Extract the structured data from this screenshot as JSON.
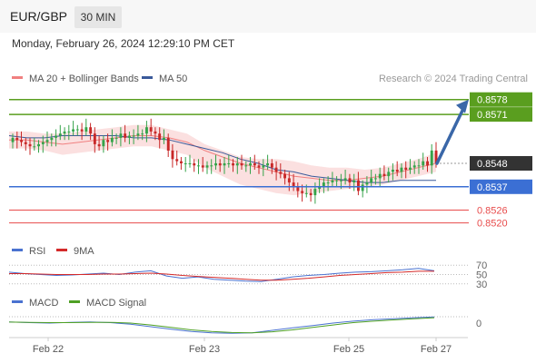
{
  "header": {
    "symbol": "EUR/GBP",
    "timeframe": "30 MIN"
  },
  "datetime": "Monday, February 26, 2024 12:29:10 PM CET",
  "legend": {
    "ma20_label": "MA 20 + Bollinger Bands",
    "ma50_label": "MA 50",
    "credit": "Research © 2024 Trading Central"
  },
  "rsi_legend": {
    "rsi": "RSI",
    "ma9": "9MA"
  },
  "macd_legend": {
    "macd": "MACD",
    "signal": "MACD Signal"
  },
  "colors": {
    "resistance": "#5a9e1f",
    "support": "#3b6fd4",
    "red_level": "#e84c4c",
    "current": "#333333",
    "arrow": "#3a67a8",
    "ma20": "#f08080",
    "ma50": "#3a5a9a",
    "band": "#fbe0e0",
    "up_candle": "#35a34a",
    "down_candle": "#c82828"
  },
  "chart_data": [
    {
      "type": "candlestick",
      "title": "EUR/GBP",
      "x_ticks": [
        "Feb 22",
        "Feb 23",
        "Feb 25",
        "Feb 27"
      ],
      "y_range": [
        0.8513,
        0.8583
      ],
      "closes": [
        0.856,
        0.8559,
        0.8558,
        0.8557,
        0.8556,
        0.8556,
        0.8557,
        0.8558,
        0.8559,
        0.856,
        0.8561,
        0.8562,
        0.8563,
        0.8563,
        0.8564,
        0.8564,
        0.8563,
        0.8565,
        0.8562,
        0.8557,
        0.8556,
        0.8559,
        0.8558,
        0.856,
        0.856,
        0.8562,
        0.856,
        0.8561,
        0.8561,
        0.8562,
        0.8562,
        0.8565,
        0.8563,
        0.8562,
        0.8559,
        0.856,
        0.8554,
        0.855,
        0.8549,
        0.8548,
        0.8548,
        0.8548,
        0.8547,
        0.8547,
        0.8546,
        0.8547,
        0.8547,
        0.8548,
        0.8547,
        0.8548,
        0.8548,
        0.8547,
        0.8548,
        0.8547,
        0.8547,
        0.8548,
        0.8547,
        0.8546,
        0.8547,
        0.8548,
        0.8546,
        0.8544,
        0.8543,
        0.8541,
        0.8539,
        0.8537,
        0.8535,
        0.8534,
        0.8534,
        0.8533,
        0.8536,
        0.8537,
        0.8539,
        0.8539,
        0.854,
        0.854,
        0.854,
        0.8541,
        0.8539,
        0.854,
        0.8535,
        0.8538,
        0.8539,
        0.8541,
        0.8541,
        0.8543,
        0.8542,
        0.8544,
        0.8545,
        0.8544,
        0.8546,
        0.8545,
        0.8546,
        0.8547,
        0.8547,
        0.8549,
        0.8547,
        0.8554,
        0.8548
      ],
      "overlays": [
        {
          "name": "MA 20 + Bollinger Bands",
          "ma": [
            0.8559,
            0.8559,
            0.8558,
            0.8557,
            0.8558,
            0.8559,
            0.856,
            0.8561,
            0.8561,
            0.856,
            0.8558,
            0.8554,
            0.8551,
            0.8548,
            0.8546,
            0.8544,
            0.8542,
            0.8541,
            0.854,
            0.854,
            0.8541,
            0.8542,
            0.8544,
            0.8546,
            0.8548
          ],
          "upper": [
            0.8563,
            0.8563,
            0.8562,
            0.8562,
            0.8563,
            0.8564,
            0.8565,
            0.8566,
            0.8566,
            0.8564,
            0.8562,
            0.8557,
            0.8554,
            0.8551,
            0.855,
            0.855,
            0.8549,
            0.8547,
            0.8546,
            0.8546,
            0.8545,
            0.8546,
            0.8548,
            0.855,
            0.8553
          ],
          "lower": [
            0.8555,
            0.8555,
            0.8554,
            0.8552,
            0.8553,
            0.8554,
            0.8555,
            0.8556,
            0.8556,
            0.8554,
            0.8552,
            0.8546,
            0.8542,
            0.8538,
            0.8536,
            0.8534,
            0.8533,
            0.8534,
            0.8535,
            0.8536,
            0.8537,
            0.8538,
            0.854,
            0.8542,
            0.8544
          ]
        },
        {
          "name": "MA 50",
          "values": [
            0.8561,
            0.856,
            0.856,
            0.8561,
            0.8561,
            0.8561,
            0.8561,
            0.856,
            0.856,
            0.8559,
            0.8557,
            0.8555,
            0.8553,
            0.855,
            0.8548,
            0.8545,
            0.8544,
            0.8542,
            0.8541,
            0.854,
            0.8539,
            0.8539,
            0.854,
            0.854,
            0.854
          ]
        }
      ],
      "levels": [
        {
          "label": "0.8578",
          "value": 0.8578,
          "kind": "resistance"
        },
        {
          "label": "0.8571",
          "value": 0.8571,
          "kind": "resistance"
        },
        {
          "label": "0.8548",
          "value": 0.8548,
          "kind": "current"
        },
        {
          "label": "0.8537",
          "value": 0.8537,
          "kind": "support"
        },
        {
          "label": "0.8526",
          "value": 0.8526,
          "kind": "red"
        },
        {
          "label": "0.8520",
          "value": 0.852,
          "kind": "red"
        }
      ],
      "projection": {
        "from": 0.8548,
        "to": 0.8578
      }
    },
    {
      "type": "line",
      "title": "RSI",
      "y_ticks": [
        "70",
        "50",
        "30"
      ],
      "y_range": [
        20,
        80
      ],
      "series": [
        {
          "name": "RSI",
          "values": [
            55,
            52,
            50,
            48,
            49,
            51,
            53,
            50,
            55,
            58,
            47,
            42,
            45,
            40,
            38,
            36,
            35,
            40,
            45,
            48,
            50,
            53,
            55,
            56,
            58,
            60,
            63,
            58
          ]
        },
        {
          "name": "9MA",
          "values": [
            52,
            52,
            51,
            50,
            50,
            50,
            51,
            51,
            52,
            53,
            51,
            48,
            46,
            44,
            42,
            40,
            38,
            38,
            40,
            42,
            45,
            48,
            50,
            52,
            54,
            55,
            57,
            57
          ]
        }
      ]
    },
    {
      "type": "line",
      "title": "MACD",
      "y_ticks": [
        "0"
      ],
      "y_range": [
        -0.0006,
        0.0006
      ],
      "series": [
        {
          "name": "MACD",
          "values": [
            5e-05,
            2e-05,
            0.0,
            3e-05,
            5e-05,
            2e-05,
            -5e-05,
            -0.00015,
            -0.00025,
            -0.00035,
            -0.0004,
            -0.00042,
            -0.0004,
            -0.0003,
            -0.0002,
            -0.0001,
            0.0,
            8e-05,
            0.00014,
            0.00018,
            0.00022,
            0.00025
          ]
        },
        {
          "name": "MACD Signal",
          "values": [
            4e-05,
            3e-05,
            2e-05,
            2e-05,
            3e-05,
            3e-05,
            0.0,
            -8e-05,
            -0.00018,
            -0.00028,
            -0.00035,
            -0.00039,
            -0.0004,
            -0.00036,
            -0.00028,
            -0.00018,
            -8e-05,
            2e-05,
            8e-05,
            0.00013,
            0.00018,
            0.00022
          ]
        }
      ]
    }
  ]
}
